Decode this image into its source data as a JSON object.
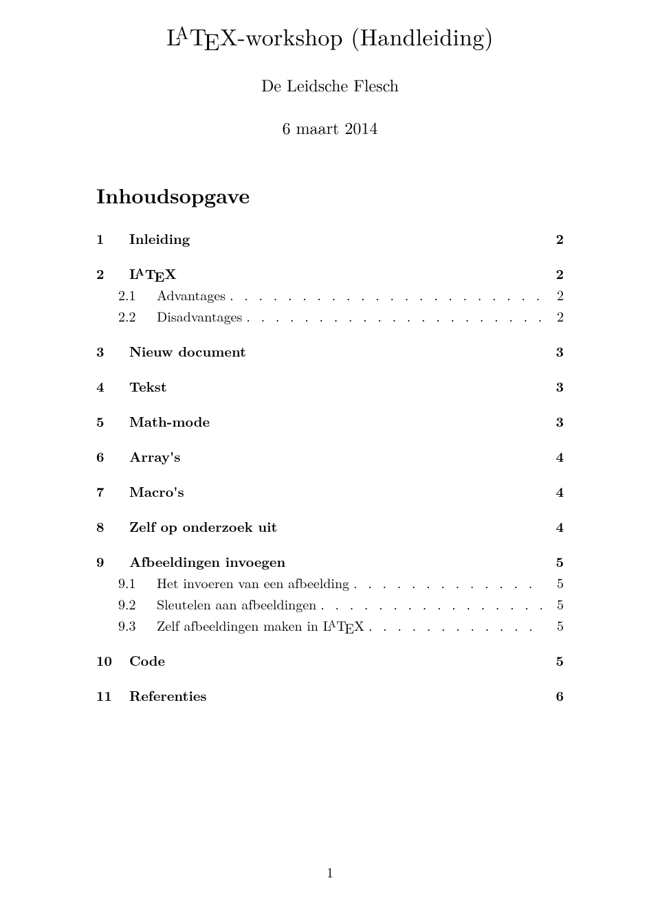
{
  "title_pre": "L",
  "title_a": "A",
  "title_t": "T",
  "title_e": "E",
  "title_x": "X",
  "title_suffix": "-workshop (Handleiding)",
  "author": "De Leidsche Flesch",
  "date": "6 maart 2014",
  "toc_heading": "Inhoudsopgave",
  "toc": {
    "items": [
      {
        "num": "1",
        "title": "Inleiding",
        "page": "2",
        "level": "sec",
        "latex": false
      },
      {
        "num": "2",
        "title_pre": "L",
        "title_a": "A",
        "title_t": "T",
        "title_e": "E",
        "title_x": "X",
        "title_suffix": "",
        "page": "2",
        "level": "sec",
        "latex": true
      },
      {
        "num": "2.1",
        "title": "Advantages",
        "page": "2",
        "level": "sub",
        "latex": false
      },
      {
        "num": "2.2",
        "title": "Disadvantages",
        "page": "2",
        "level": "sub",
        "latex": false
      },
      {
        "num": "3",
        "title": "Nieuw document",
        "page": "3",
        "level": "sec",
        "latex": false
      },
      {
        "num": "4",
        "title": "Tekst",
        "page": "3",
        "level": "sec",
        "latex": false
      },
      {
        "num": "5",
        "title": "Math-mode",
        "page": "3",
        "level": "sec",
        "latex": false
      },
      {
        "num": "6",
        "title": "Array's",
        "page": "4",
        "level": "sec",
        "latex": false
      },
      {
        "num": "7",
        "title": "Macro's",
        "page": "4",
        "level": "sec",
        "latex": false
      },
      {
        "num": "8",
        "title": "Zelf op onderzoek uit",
        "page": "4",
        "level": "sec",
        "latex": false
      },
      {
        "num": "9",
        "title": "Afbeeldingen invoegen",
        "page": "5",
        "level": "sec",
        "latex": false
      },
      {
        "num": "9.1",
        "title": "Het invoeren van een afbeelding",
        "page": "5",
        "level": "sub",
        "latex": false
      },
      {
        "num": "9.2",
        "title": "Sleutelen aan afbeeldingen",
        "page": "5",
        "level": "sub",
        "latex": false
      },
      {
        "num": "9.3",
        "title_pre": "Zelf afbeeldingen maken in L",
        "title_a": "A",
        "title_t": "T",
        "title_e": "E",
        "title_x": "X",
        "title_suffix": "",
        "page": "5",
        "level": "sub",
        "latex": true
      },
      {
        "num": "10",
        "title": "Code",
        "page": "5",
        "level": "sec",
        "latex": false
      },
      {
        "num": "11",
        "title": "Referenties",
        "page": "6",
        "level": "sec",
        "latex": false
      }
    ]
  },
  "page_number": "1"
}
